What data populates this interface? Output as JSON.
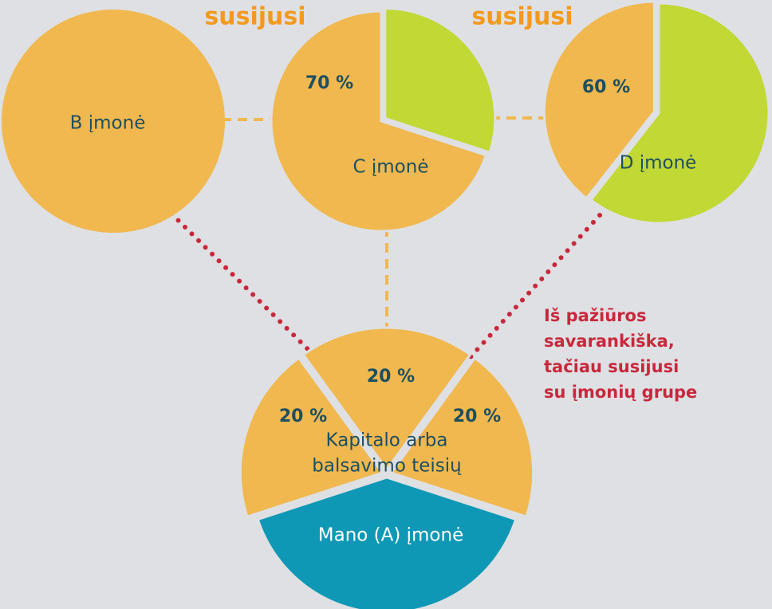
{
  "top_labels": [
    "susijusi",
    "susijusi"
  ],
  "nodes": [
    {
      "label": "B įmonė"
    },
    {
      "label": "C įmonė",
      "share": "70 %"
    },
    {
      "label": "D įmonė",
      "share": "60 %"
    },
    {
      "label": "Mano (A) įmonė",
      "caption": [
        "Kapitalo arba",
        "balsavimo teisių"
      ],
      "shares": [
        "20 %",
        "20 %",
        "20 %"
      ]
    }
  ],
  "note": [
    "Iš pažiūros",
    "savarankiška,",
    "tačiau susijusi",
    "su įmonių grupe"
  ]
}
